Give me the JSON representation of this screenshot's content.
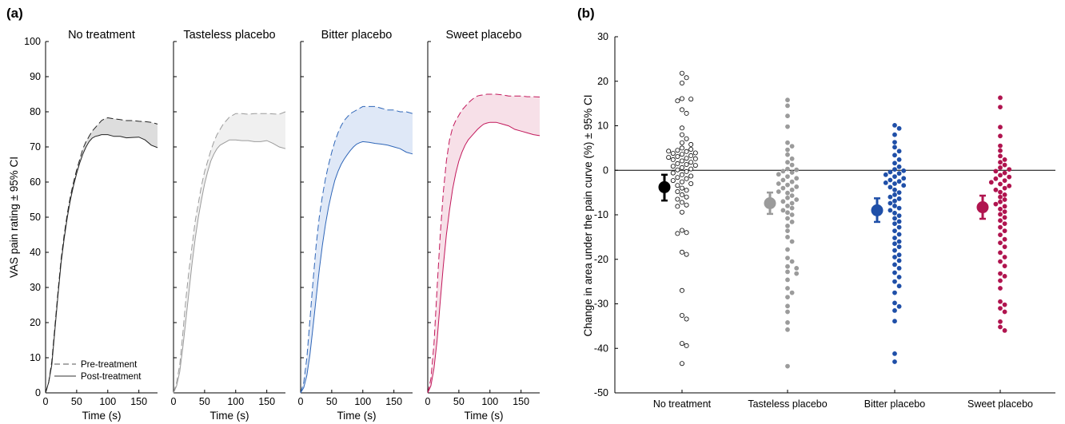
{
  "panels": {
    "a_label": "(a)",
    "b_label": "(b)"
  },
  "legend": {
    "pre": "Pre-treatment",
    "post": "Post-treatment"
  },
  "chart_data": [
    {
      "type": "line",
      "panel": "(a)",
      "ylabel": "VAS pain rating ± 95% CI",
      "xlabel": "Time (s)",
      "xlim": [
        0,
        180
      ],
      "ylim": [
        0,
        100
      ],
      "xticks": [
        0,
        50,
        100,
        150
      ],
      "yticks": [
        0,
        10,
        20,
        30,
        40,
        50,
        60,
        70,
        80,
        90,
        100
      ],
      "x": [
        0,
        5,
        10,
        15,
        20,
        25,
        30,
        35,
        40,
        45,
        50,
        55,
        60,
        65,
        70,
        75,
        80,
        85,
        90,
        95,
        100,
        110,
        120,
        130,
        140,
        150,
        160,
        170,
        180
      ],
      "subplots": [
        {
          "title": "No treatment",
          "color": "#8c8c8c",
          "fill": "#d9d9d9",
          "series": [
            {
              "name": "Pre-treatment",
              "values": [
                0,
                3,
                9,
                19,
                29,
                38,
                45,
                51,
                56,
                60,
                63.5,
                66.5,
                69.5,
                71.5,
                73,
                74.5,
                75.5,
                76.5,
                77.5,
                78,
                78.3,
                78,
                77.8,
                77.5,
                77.5,
                77.3,
                77.2,
                77,
                76.5
              ]
            },
            {
              "name": "Post-treatment",
              "values": [
                0,
                3,
                8,
                18,
                28,
                37,
                44,
                50,
                55,
                59,
                62.5,
                65.5,
                68,
                70,
                71.5,
                72.5,
                73,
                73.2,
                73.5,
                73.5,
                73.5,
                73,
                73,
                72.6,
                72.7,
                72.8,
                72,
                70.5,
                69.8
              ]
            }
          ]
        },
        {
          "title": "Tasteless placebo",
          "color": "#9b9b9b",
          "fill": "#eeeeee",
          "series": [
            {
              "name": "Pre-treatment",
              "values": [
                0,
                3,
                8,
                17,
                27,
                35,
                42,
                49,
                54,
                59,
                63,
                66,
                69,
                71.5,
                73.5,
                75,
                76.5,
                77.5,
                78.5,
                79,
                79.5,
                79.5,
                79.3,
                79.5,
                79.5,
                79.5,
                79.4,
                79.3,
                80
              ]
            },
            {
              "name": "Post-treatment",
              "values": [
                0,
                2,
                6,
                13,
                21,
                29,
                37,
                44,
                50,
                55,
                59.5,
                63,
                66,
                68,
                69.5,
                70.5,
                71,
                71.5,
                72,
                72,
                72,
                71.8,
                71.8,
                71.5,
                71.5,
                71.8,
                71,
                70,
                69.5
              ]
            }
          ]
        },
        {
          "title": "Bitter placebo",
          "color": "#2f66b8",
          "fill": "#dce6f6",
          "series": [
            {
              "name": "Pre-treatment",
              "values": [
                0,
                3,
                10,
                21,
                32,
                42,
                50,
                56,
                61,
                65,
                68.5,
                71.5,
                74,
                76,
                77.5,
                78.5,
                79.5,
                80,
                80.5,
                81,
                81.5,
                81.5,
                81.5,
                81,
                80.5,
                80.5,
                80,
                80,
                79.5
              ]
            },
            {
              "name": "Post-treatment",
              "values": [
                0,
                1.5,
                5,
                11,
                19,
                27,
                35,
                42,
                48,
                53,
                57,
                60.5,
                63,
                65,
                66.5,
                67.8,
                69,
                70,
                70.8,
                71.2,
                71.5,
                71.3,
                71,
                70.8,
                70.5,
                70,
                69.5,
                68.5,
                68
              ]
            }
          ]
        },
        {
          "title": "Sweet placebo",
          "color": "#c2185b",
          "fill": "#f6dde6",
          "series": [
            {
              "name": "Pre-treatment",
              "values": [
                0,
                4,
                14,
                30,
                45,
                57,
                66,
                72,
                75.5,
                77.5,
                79,
                80.5,
                81.5,
                82.5,
                83.3,
                84,
                84.5,
                84.7,
                84.8,
                85,
                85,
                85,
                84.8,
                84.5,
                84.5,
                84.5,
                84.3,
                84.3,
                84.2
              ]
            },
            {
              "name": "Post-treatment",
              "values": [
                0,
                2,
                7,
                15,
                26,
                36,
                45,
                52,
                58,
                62.5,
                66,
                68.5,
                70.5,
                72,
                73,
                74,
                75,
                75.8,
                76.5,
                76.8,
                77,
                77,
                76.5,
                76,
                75,
                74.5,
                74,
                73.5,
                73.2
              ]
            }
          ]
        }
      ]
    },
    {
      "type": "scatter",
      "panel": "(b)",
      "ylabel": "Change in area under the pain curve (%) ± 95% CI",
      "ylim": [
        -50,
        30
      ],
      "yticks": [
        -50,
        -40,
        -30,
        -20,
        -10,
        0,
        10,
        20,
        30
      ],
      "categories": [
        "No treatment",
        "Tasteless placebo",
        "Bitter placebo",
        "Sweet placebo"
      ],
      "reference_line": 0,
      "groups": [
        {
          "category": "No treatment",
          "color": "#000000",
          "hollow": true,
          "mean": -3.8,
          "ci": [
            -6.8,
            -1
          ],
          "points": [
            21.8,
            20.8,
            19.6,
            16.1,
            16.0,
            15.6,
            13.6,
            12.8,
            9.5,
            8.0,
            7.1,
            6.2,
            5.8,
            5.0,
            4.7,
            4.5,
            4.3,
            4.2,
            3.9,
            3.8,
            3.6,
            3.3,
            3.1,
            2.9,
            2.7,
            2.6,
            2.4,
            2.1,
            1.8,
            1.5,
            1.3,
            1.1,
            0.9,
            0.6,
            0.3,
            0.1,
            -0.3,
            -0.6,
            -1.0,
            -1.3,
            -1.6,
            -1.9,
            -2.3,
            -2.6,
            -3.0,
            -3.4,
            -4.0,
            -4.5,
            -4.8,
            -5.5,
            -6.0,
            -6.5,
            -7.2,
            -7.8,
            -8.1,
            -9.4,
            -13.5,
            -14.0,
            -14.2,
            -18.4,
            -18.9,
            -27.0,
            -32.6,
            -33.4,
            -38.9,
            -39.4,
            -43.4
          ]
        },
        {
          "category": "Tasteless placebo",
          "color": "#9b9b9b",
          "hollow": false,
          "mean": -7.4,
          "ci": [
            -9.8,
            -5
          ],
          "points": [
            15.8,
            14.5,
            12.2,
            9.8,
            6.2,
            5.4,
            4.6,
            3.5,
            2.6,
            1.8,
            1.2,
            0.3,
            0.1,
            -0.2,
            -0.5,
            -0.9,
            -1.4,
            -1.8,
            -2.2,
            -2.6,
            -3.0,
            -3.3,
            -3.7,
            -4.0,
            -4.4,
            -4.8,
            -5.1,
            -5.7,
            -6.2,
            -6.6,
            -7.0,
            -7.4,
            -8.0,
            -8.5,
            -9.0,
            -9.5,
            -10.0,
            -10.8,
            -11.6,
            -12.5,
            -13.6,
            -15.0,
            -16.0,
            -17.8,
            -19.7,
            -20.5,
            -21.6,
            -22.0,
            -22.8,
            -23.2,
            -24.6,
            -26.5,
            -27.5,
            -28.5,
            -30.5,
            -31.8,
            -34.2,
            -35.8,
            -44.0
          ]
        },
        {
          "category": "Bitter placebo",
          "color": "#1f4fa8",
          "hollow": false,
          "mean": -9.0,
          "ci": [
            -11.6,
            -6.3
          ],
          "points": [
            10.1,
            9.4,
            8.0,
            6.3,
            5.2,
            4.3,
            3.4,
            2.4,
            1.6,
            0.8,
            0.2,
            -0.1,
            -0.4,
            -0.7,
            -1.0,
            -1.4,
            -1.8,
            -2.2,
            -2.5,
            -2.8,
            -3.0,
            -3.4,
            -3.8,
            -4.4,
            -5.0,
            -5.5,
            -6.0,
            -6.4,
            -6.9,
            -7.4,
            -8.0,
            -8.5,
            -9.0,
            -9.6,
            -10.2,
            -10.8,
            -11.5,
            -12.0,
            -12.8,
            -13.6,
            -14.4,
            -15.2,
            -16.0,
            -16.5,
            -17.2,
            -18.0,
            -19.0,
            -19.5,
            -20.3,
            -21.2,
            -22.0,
            -23.0,
            -24.0,
            -25.0,
            -26.0,
            -27.5,
            -29.8,
            -30.6,
            -31.5,
            -33.9,
            -41.2,
            -43.0
          ]
        },
        {
          "category": "Sweet placebo",
          "color": "#b0144f",
          "hollow": false,
          "mean": -8.3,
          "ci": [
            -10.9,
            -5.7
          ],
          "points": [
            16.3,
            14.2,
            9.7,
            7.7,
            5.5,
            4.4,
            3.2,
            2.4,
            1.8,
            1.2,
            0.6,
            0.2,
            -0.2,
            -0.6,
            -1.1,
            -1.5,
            -1.9,
            -2.3,
            -2.7,
            -3.1,
            -3.5,
            -4.0,
            -4.4,
            -4.9,
            -5.5,
            -6.0,
            -6.6,
            -7.1,
            -7.6,
            -8.1,
            -8.7,
            -9.3,
            -9.9,
            -10.6,
            -11.3,
            -12.0,
            -12.8,
            -13.6,
            -14.5,
            -15.5,
            -16.3,
            -17.2,
            -18.5,
            -19.5,
            -20.5,
            -21.5,
            -23.2,
            -23.8,
            -24.8,
            -26.5,
            -29.5,
            -30.2,
            -31.0,
            -31.8,
            -34.0,
            -35.2,
            -36.0
          ]
        }
      ]
    }
  ]
}
